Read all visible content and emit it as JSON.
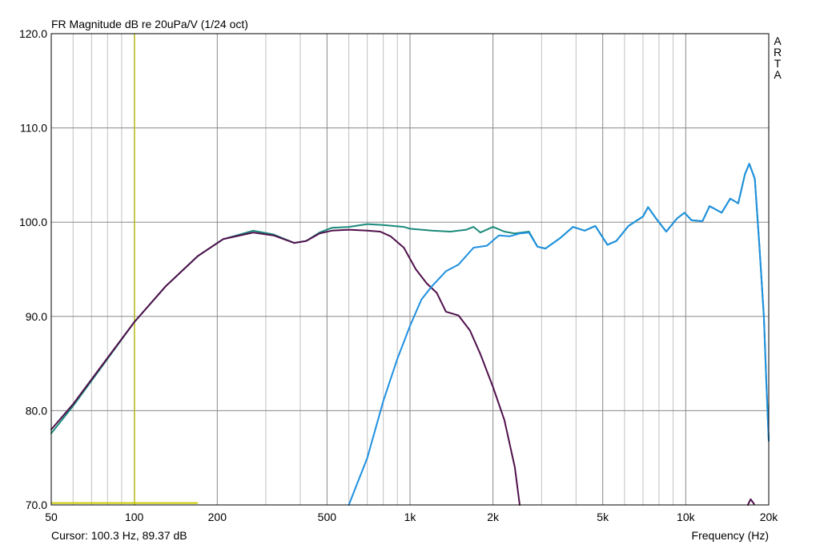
{
  "cursor_readout": "Cursor: 100.3 Hz, 89.37 dB",
  "brand": "ARTA",
  "colors": {
    "background": "#ffffff",
    "grid": "#c0c0c0",
    "axes": "#000000",
    "cursor": "#c8c800",
    "total": "#1a8a7a",
    "woofer": "#50104c",
    "tweeter": "#1e90e0"
  },
  "chart_data": {
    "type": "line",
    "title": "FR Magnitude dB re 20uPa/V (1/24 oct)",
    "xlabel": "Frequency (Hz)",
    "ylabel": "",
    "x_scale": "log",
    "xlim": [
      50,
      20000
    ],
    "ylim": [
      70,
      120
    ],
    "grid": true,
    "x_ticks": [
      {
        "value": 50,
        "label": "50"
      },
      {
        "value": 100,
        "label": "100"
      },
      {
        "value": 200,
        "label": "200"
      },
      {
        "value": 500,
        "label": "500"
      },
      {
        "value": 1000,
        "label": "1k"
      },
      {
        "value": 2000,
        "label": "2k"
      },
      {
        "value": 5000,
        "label": "5k"
      },
      {
        "value": 10000,
        "label": "10k"
      },
      {
        "value": 20000,
        "label": "20k"
      }
    ],
    "y_ticks": [
      {
        "value": 70,
        "label": "70.0"
      },
      {
        "value": 80,
        "label": "80.0"
      },
      {
        "value": 90,
        "label": "90.0"
      },
      {
        "value": 100,
        "label": "100.0"
      },
      {
        "value": 110,
        "label": "110.0"
      },
      {
        "value": 120,
        "label": "120.0"
      }
    ],
    "cursor": {
      "x": 100.3,
      "y": 89.37
    },
    "cursor_marker": {
      "x_start": 50,
      "x_end": 170,
      "y": 70.2
    },
    "series": [
      {
        "color": "#1a8a7a",
        "points": [
          [
            50,
            77.6
          ],
          [
            60,
            80.5
          ],
          [
            80,
            85.5
          ],
          [
            100,
            89.4
          ],
          [
            130,
            93.2
          ],
          [
            170,
            96.4
          ],
          [
            210,
            98.2
          ],
          [
            270,
            99.1
          ],
          [
            320,
            98.7
          ],
          [
            380,
            97.8
          ],
          [
            420,
            98.0
          ],
          [
            470,
            98.9
          ],
          [
            520,
            99.4
          ],
          [
            600,
            99.5
          ],
          [
            700,
            99.8
          ],
          [
            800,
            99.7
          ],
          [
            950,
            99.5
          ],
          [
            1000,
            99.3
          ],
          [
            1200,
            99.1
          ],
          [
            1400,
            99.0
          ],
          [
            1600,
            99.2
          ],
          [
            1700,
            99.5
          ],
          [
            1800,
            98.9
          ],
          [
            2000,
            99.5
          ],
          [
            2200,
            99.0
          ],
          [
            2400,
            98.8
          ],
          [
            2700,
            99.0
          ],
          [
            2900,
            97.4
          ],
          [
            3100,
            97.2
          ],
          [
            3500,
            98.3
          ],
          [
            3900,
            99.5
          ],
          [
            4300,
            99.1
          ],
          [
            4700,
            99.6
          ],
          [
            5200,
            97.6
          ],
          [
            5600,
            98.0
          ],
          [
            6200,
            99.6
          ],
          [
            7000,
            100.6
          ],
          [
            7300,
            101.6
          ],
          [
            7800,
            100.4
          ],
          [
            8500,
            99.0
          ],
          [
            9300,
            100.4
          ],
          [
            9900,
            101.0
          ],
          [
            10500,
            100.2
          ],
          [
            11500,
            100.1
          ],
          [
            12200,
            101.7
          ],
          [
            13500,
            101.0
          ],
          [
            14500,
            102.5
          ],
          [
            15500,
            102.0
          ],
          [
            16400,
            105.1
          ],
          [
            17000,
            106.2
          ],
          [
            17800,
            104.6
          ],
          [
            18500,
            97.5
          ],
          [
            19200,
            90.0
          ],
          [
            19600,
            83.0
          ],
          [
            20000,
            76.8
          ]
        ]
      },
      {
        "color": "#50104c",
        "points": [
          [
            50,
            78.0
          ],
          [
            60,
            80.7
          ],
          [
            80,
            85.6
          ],
          [
            100,
            89.4
          ],
          [
            130,
            93.2
          ],
          [
            170,
            96.4
          ],
          [
            210,
            98.2
          ],
          [
            270,
            98.9
          ],
          [
            320,
            98.6
          ],
          [
            380,
            97.8
          ],
          [
            420,
            98.0
          ],
          [
            470,
            98.8
          ],
          [
            520,
            99.1
          ],
          [
            600,
            99.2
          ],
          [
            700,
            99.1
          ],
          [
            780,
            99.0
          ],
          [
            850,
            98.5
          ],
          [
            950,
            97.3
          ],
          [
            1050,
            95.0
          ],
          [
            1150,
            93.5
          ],
          [
            1250,
            92.5
          ],
          [
            1350,
            90.5
          ],
          [
            1500,
            90.1
          ],
          [
            1650,
            88.5
          ],
          [
            1800,
            86.0
          ],
          [
            2000,
            82.5
          ],
          [
            2200,
            79.0
          ],
          [
            2400,
            74.0
          ],
          [
            2500,
            70.0
          ]
        ]
      },
      {
        "color": "#1e90e0",
        "points": [
          [
            600,
            70.0
          ],
          [
            700,
            75.0
          ],
          [
            800,
            81.0
          ],
          [
            900,
            85.5
          ],
          [
            1000,
            89.0
          ],
          [
            1100,
            91.8
          ],
          [
            1200,
            93.2
          ],
          [
            1350,
            94.8
          ],
          [
            1500,
            95.5
          ],
          [
            1700,
            97.3
          ],
          [
            1900,
            97.5
          ],
          [
            2100,
            98.6
          ],
          [
            2300,
            98.5
          ],
          [
            2500,
            98.8
          ],
          [
            2700,
            98.9
          ],
          [
            2900,
            97.4
          ],
          [
            3100,
            97.2
          ],
          [
            3500,
            98.3
          ],
          [
            3900,
            99.5
          ],
          [
            4300,
            99.1
          ],
          [
            4700,
            99.6
          ],
          [
            5200,
            97.6
          ],
          [
            5600,
            98.0
          ],
          [
            6200,
            99.6
          ],
          [
            7000,
            100.6
          ],
          [
            7300,
            101.6
          ],
          [
            7800,
            100.4
          ],
          [
            8500,
            99.0
          ],
          [
            9300,
            100.4
          ],
          [
            9900,
            101.0
          ],
          [
            10500,
            100.2
          ],
          [
            11500,
            100.1
          ],
          [
            12200,
            101.7
          ],
          [
            13500,
            101.0
          ],
          [
            14500,
            102.5
          ],
          [
            15500,
            102.0
          ],
          [
            16400,
            105.1
          ],
          [
            17000,
            106.2
          ],
          [
            17800,
            104.6
          ],
          [
            18500,
            97.5
          ],
          [
            19200,
            90.0
          ],
          [
            19600,
            83.0
          ],
          [
            20000,
            76.8
          ]
        ]
      },
      {
        "color": "#50104c",
        "points": [
          [
            16800,
            70.0
          ],
          [
            17200,
            70.6
          ],
          [
            17700,
            70.1
          ]
        ]
      }
    ]
  }
}
